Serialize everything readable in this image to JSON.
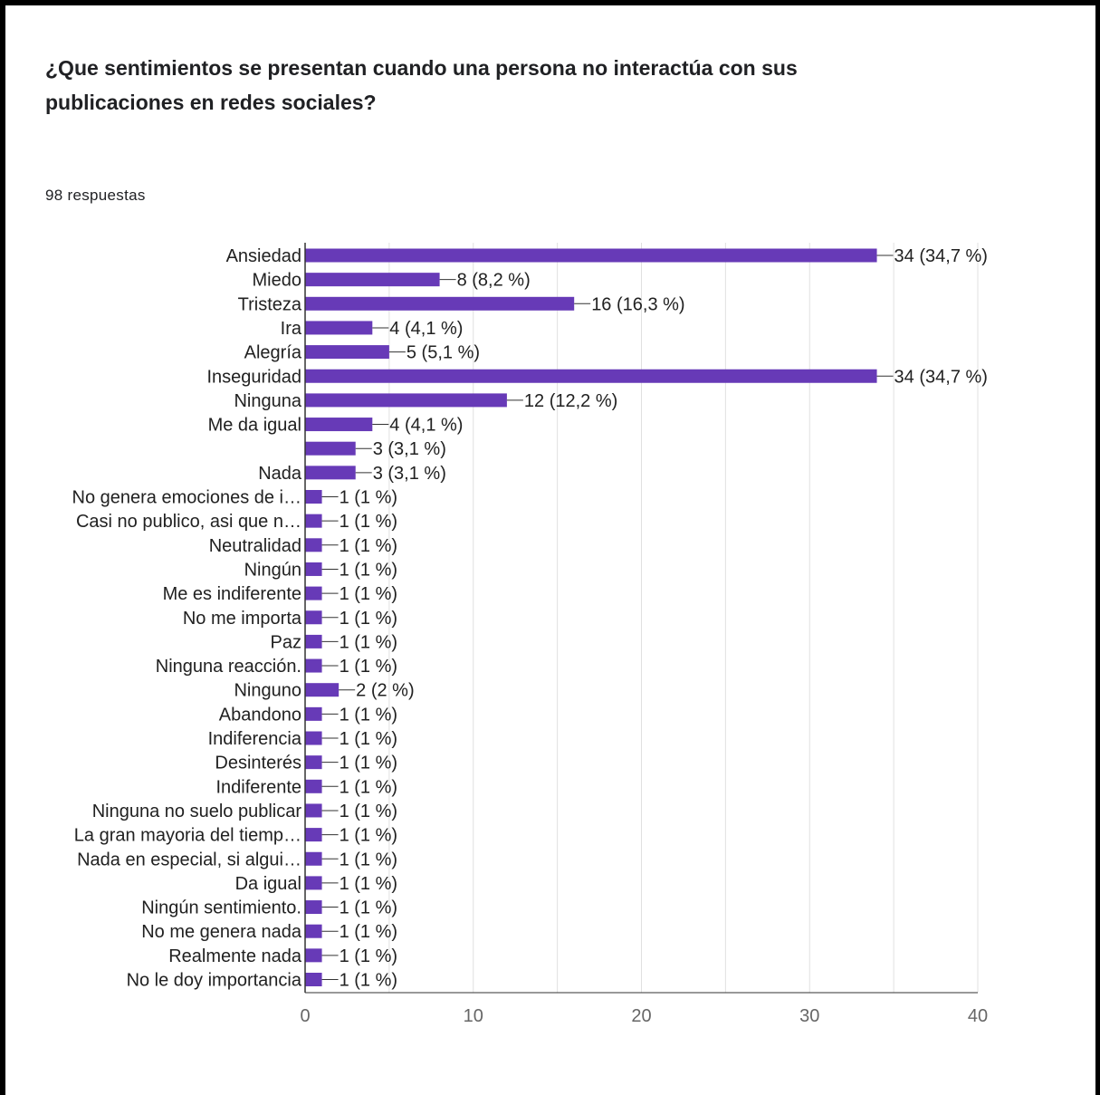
{
  "question": {
    "title": "¿Que sentimientos se presentan cuando una persona no interactúa con sus publicaciones en redes sociales?",
    "responses": "98 respuestas"
  },
  "colors": {
    "bar": "#673ab7",
    "text": "#212121",
    "grid": "#e0e0e0",
    "axis": "#333333"
  },
  "chart_data": {
    "type": "bar",
    "orientation": "horizontal",
    "title": "",
    "xlabel": "",
    "ylabel": "",
    "xlim": [
      0,
      40
    ],
    "x_ticks": [
      "0",
      "10",
      "20",
      "30",
      "40"
    ],
    "grid": true,
    "legend": "none",
    "categories": [
      "Ansiedad",
      "Miedo",
      "Tristeza",
      "Ira",
      "Alegría",
      "Inseguridad",
      "Ninguna",
      "Me da igual",
      "",
      "Nada",
      "No genera emociones de i…",
      "Casi no publico, asi que n…",
      "Neutralidad",
      "Ningún",
      "Me es indiferente",
      "No me importa",
      "Paz",
      "Ninguna reacción.",
      "Ninguno",
      "Abandono",
      "Indiferencia",
      "Desinterés",
      "Indiferente",
      "Ninguna no suelo publicar",
      "La gran mayoria del tiemp…",
      "Nada en especial, si algui…",
      "Da igual",
      "Ningún sentimiento.",
      "No me genera nada",
      "Realmente nada",
      "No le doy importancia"
    ],
    "values": [
      34,
      8,
      16,
      4,
      5,
      34,
      12,
      4,
      3,
      3,
      1,
      1,
      1,
      1,
      1,
      1,
      1,
      1,
      2,
      1,
      1,
      1,
      1,
      1,
      1,
      1,
      1,
      1,
      1,
      1,
      1
    ],
    "value_labels": [
      "34 (34,7 %)",
      "8 (8,2 %)",
      "16 (16,3 %)",
      "4 (4,1 %)",
      "5 (5,1 %)",
      "34 (34,7 %)",
      "12 (12,2 %)",
      "4 (4,1 %)",
      "3 (3,1 %)",
      "3 (3,1 %)",
      "1 (1 %)",
      "1 (1 %)",
      "1 (1 %)",
      "1 (1 %)",
      "1 (1 %)",
      "1 (1 %)",
      "1 (1 %)",
      "1 (1 %)",
      "2 (2 %)",
      "1 (1 %)",
      "1 (1 %)",
      "1 (1 %)",
      "1 (1 %)",
      "1 (1 %)",
      "1 (1 %)",
      "1 (1 %)",
      "1 (1 %)",
      "1 (1 %)",
      "1 (1 %)",
      "1 (1 %)",
      "1 (1 %)"
    ]
  }
}
